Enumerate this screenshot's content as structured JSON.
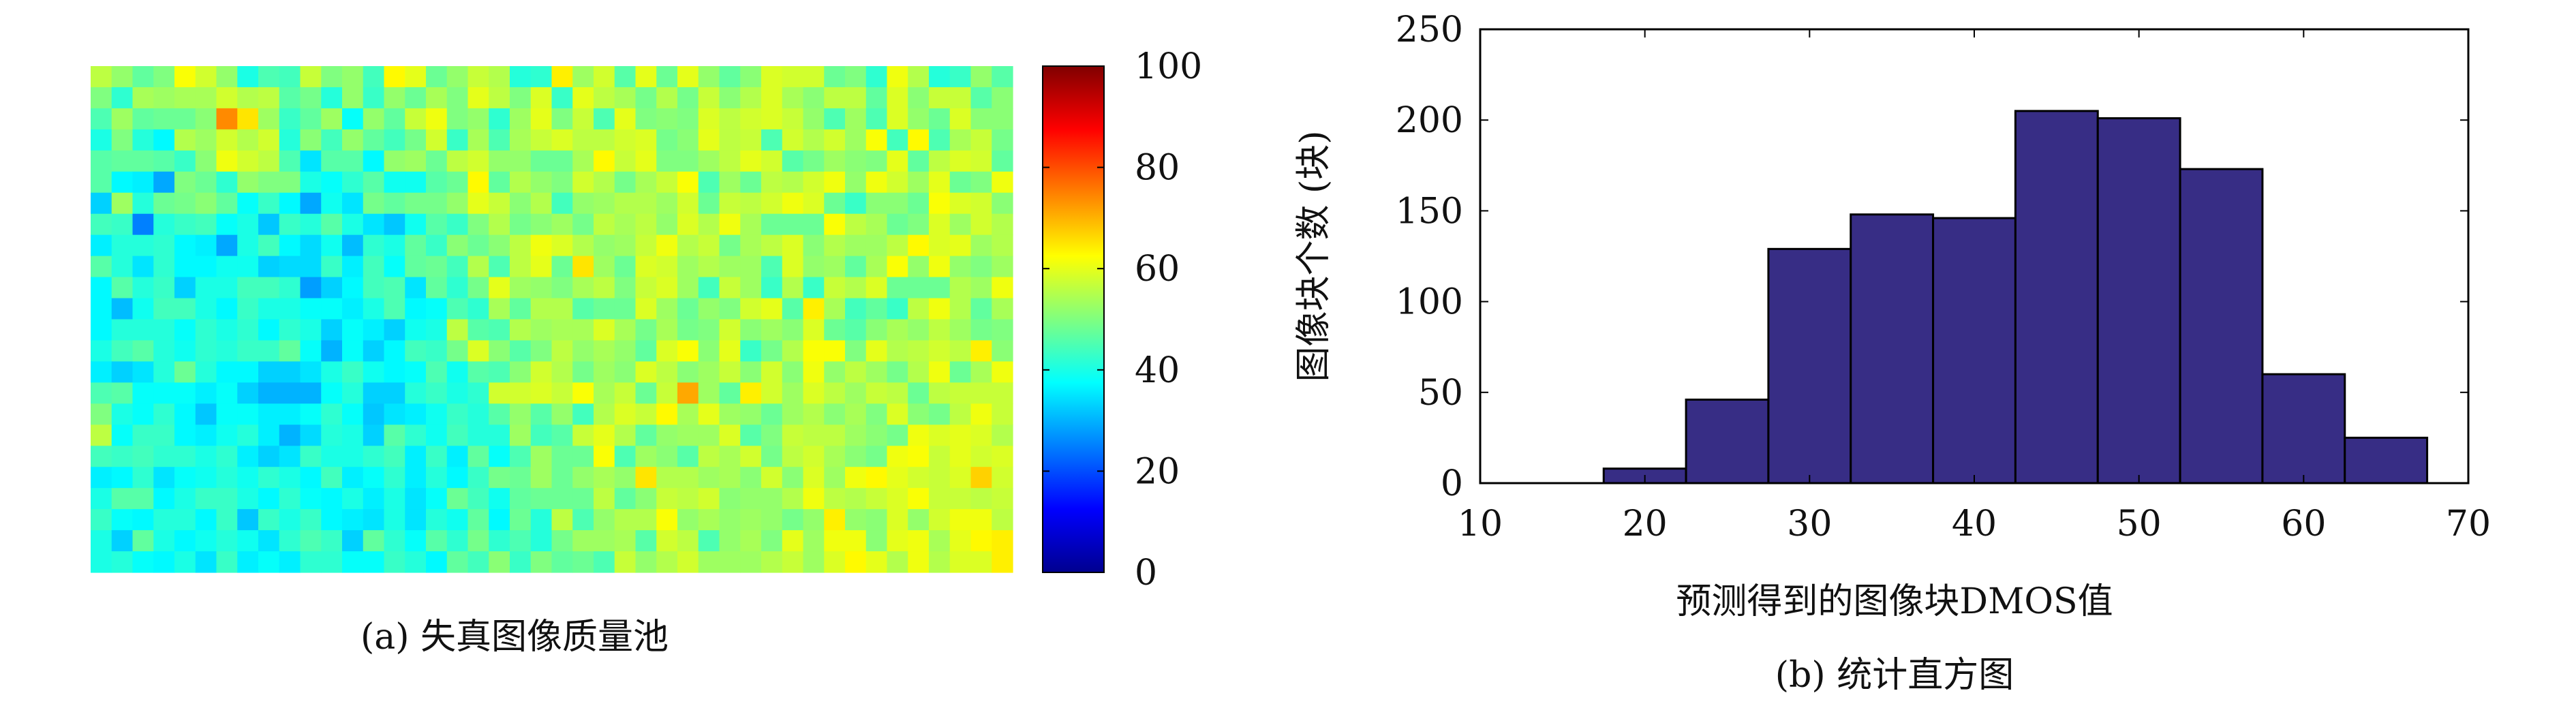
{
  "panel_a": {
    "caption": "(a) 失真图像质量池",
    "colorbar_ticks": [
      "0",
      "20",
      "40",
      "60",
      "80",
      "100"
    ]
  },
  "panel_b": {
    "caption": "(b) 统计直方图"
  },
  "chart_data": [
    {
      "type": "heatmap",
      "rows": 24,
      "cols": 44,
      "colormap": "jet",
      "zlim": [
        0,
        100
      ],
      "colorbar_ticks": [
        0,
        20,
        40,
        60,
        80,
        100
      ],
      "values": [
        [
          56,
          52,
          47,
          50,
          62,
          58,
          52,
          40,
          45,
          44,
          57,
          50,
          52,
          44,
          63,
          60,
          48,
          52,
          57,
          55,
          41,
          42,
          64,
          53,
          58,
          46,
          60,
          48,
          60,
          52,
          47,
          51,
          59,
          58,
          58,
          48,
          50,
          42,
          61,
          55,
          41,
          43,
          52,
          46
        ],
        [
          50,
          42,
          54,
          53,
          54,
          54,
          58,
          55,
          56,
          46,
          49,
          41,
          52,
          43,
          52,
          48,
          54,
          50,
          60,
          56,
          50,
          59,
          43,
          60,
          56,
          54,
          49,
          55,
          49,
          57,
          51,
          55,
          59,
          54,
          51,
          56,
          56,
          47,
          59,
          51,
          57,
          57,
          46,
          51
        ],
        [
          45,
          53,
          47,
          48,
          48,
          51,
          74,
          65,
          53,
          43,
          47,
          53,
          38,
          52,
          47,
          57,
          61,
          50,
          52,
          42,
          53,
          60,
          50,
          57,
          45,
          60,
          50,
          51,
          50,
          59,
          56,
          58,
          59,
          57,
          52,
          45,
          53,
          45,
          59,
          52,
          48,
          59,
          51,
          51
        ],
        [
          40,
          50,
          41,
          37,
          55,
          53,
          58,
          55,
          58,
          41,
          51,
          44,
          52,
          47,
          44,
          49,
          58,
          43,
          54,
          45,
          54,
          57,
          59,
          56,
          56,
          58,
          59,
          49,
          51,
          60,
          56,
          57,
          45,
          58,
          55,
          58,
          53,
          62,
          44,
          63,
          45,
          54,
          57,
          49
        ],
        [
          46,
          47,
          47,
          46,
          43,
          51,
          61,
          58,
          56,
          45,
          35,
          46,
          46,
          37,
          52,
          53,
          48,
          56,
          58,
          52,
          52,
          48,
          48,
          54,
          63,
          57,
          60,
          50,
          50,
          53,
          56,
          60,
          58,
          46,
          49,
          53,
          51,
          50,
          60,
          47,
          56,
          59,
          58,
          47
        ],
        [
          46,
          37,
          36,
          29,
          50,
          48,
          42,
          52,
          50,
          50,
          40,
          38,
          42,
          46,
          39,
          39,
          46,
          48,
          63,
          47,
          55,
          52,
          50,
          58,
          55,
          49,
          54,
          57,
          62,
          45,
          53,
          48,
          56,
          55,
          58,
          61,
          52,
          61,
          58,
          53,
          60,
          48,
          50,
          61
        ],
        [
          33,
          53,
          41,
          48,
          49,
          51,
          47,
          38,
          43,
          37,
          29,
          39,
          35,
          49,
          47,
          49,
          49,
          52,
          60,
          57,
          51,
          55,
          44,
          52,
          53,
          55,
          55,
          53,
          58,
          48,
          57,
          56,
          58,
          61,
          59,
          48,
          43,
          51,
          51,
          48,
          62,
          59,
          58,
          51
        ],
        [
          44,
          43,
          25,
          41,
          43,
          44,
          38,
          40,
          32,
          43,
          41,
          46,
          40,
          35,
          32,
          39,
          46,
          43,
          50,
          55,
          49,
          51,
          53,
          49,
          56,
          54,
          56,
          52,
          59,
          55,
          61,
          54,
          48,
          48,
          48,
          62,
          56,
          54,
          48,
          50,
          59,
          53,
          58,
          55
        ],
        [
          36,
          41,
          41,
          42,
          37,
          36,
          29,
          40,
          44,
          37,
          34,
          39,
          31,
          42,
          40,
          47,
          43,
          51,
          48,
          51,
          56,
          61,
          59,
          55,
          52,
          53,
          57,
          61,
          55,
          57,
          49,
          54,
          56,
          59,
          51,
          55,
          53,
          53,
          56,
          63,
          59,
          60,
          53,
          55
        ],
        [
          46,
          41,
          35,
          42,
          37,
          37,
          39,
          39,
          33,
          34,
          34,
          43,
          36,
          44,
          38,
          47,
          48,
          44,
          55,
          45,
          56,
          60,
          48,
          65,
          53,
          48,
          59,
          58,
          53,
          55,
          53,
          53,
          45,
          59,
          52,
          53,
          47,
          54,
          62,
          52,
          61,
          52,
          50,
          53
        ],
        [
          37,
          46,
          41,
          43,
          33,
          40,
          40,
          44,
          44,
          42,
          28,
          33,
          37,
          44,
          45,
          35,
          47,
          42,
          49,
          60,
          53,
          52,
          50,
          54,
          56,
          50,
          57,
          59,
          53,
          44,
          57,
          53,
          43,
          55,
          43,
          57,
          55,
          59,
          48,
          48,
          48,
          55,
          53,
          61
        ],
        [
          37,
          31,
          39,
          44,
          44,
          40,
          37,
          43,
          40,
          40,
          38,
          38,
          36,
          40,
          45,
          37,
          38,
          45,
          42,
          54,
          47,
          55,
          55,
          46,
          48,
          48,
          59,
          53,
          48,
          52,
          50,
          58,
          60,
          46,
          64,
          54,
          44,
          47,
          43,
          56,
          61,
          55,
          47,
          54
        ],
        [
          37,
          41,
          41,
          41,
          38,
          42,
          40,
          42,
          37,
          42,
          40,
          33,
          38,
          36,
          33,
          39,
          40,
          56,
          46,
          45,
          55,
          53,
          54,
          54,
          59,
          54,
          49,
          54,
          49,
          50,
          58,
          51,
          53,
          51,
          59,
          48,
          46,
          51,
          54,
          52,
          56,
          53,
          49,
          50
        ],
        [
          40,
          44,
          46,
          41,
          39,
          42,
          41,
          43,
          43,
          47,
          38,
          30,
          38,
          33,
          37,
          44,
          43,
          49,
          59,
          51,
          46,
          50,
          56,
          52,
          54,
          52,
          47,
          59,
          62,
          51,
          60,
          43,
          49,
          55,
          62,
          62,
          50,
          60,
          55,
          56,
          58,
          56,
          64,
          51
        ],
        [
          36,
          33,
          35,
          41,
          48,
          41,
          37,
          37,
          33,
          33,
          35,
          40,
          43,
          39,
          37,
          38,
          45,
          39,
          46,
          45,
          51,
          58,
          55,
          49,
          53,
          51,
          59,
          56,
          51,
          53,
          57,
          51,
          58,
          51,
          61,
          52,
          56,
          53,
          49,
          55,
          61,
          48,
          54,
          61
        ],
        [
          45,
          46,
          38,
          38,
          38,
          36,
          38,
          33,
          30,
          30,
          30,
          38,
          41,
          33,
          33,
          41,
          43,
          40,
          42,
          58,
          58,
          59,
          57,
          62,
          54,
          57,
          48,
          57,
          71,
          53,
          47,
          64,
          58,
          53,
          59,
          56,
          53,
          57,
          56,
          48,
          56,
          57,
          57,
          57
        ],
        [
          50,
          40,
          38,
          42,
          37,
          32,
          38,
          38,
          36,
          36,
          38,
          42,
          38,
          32,
          35,
          36,
          39,
          43,
          41,
          46,
          52,
          46,
          52,
          44,
          55,
          59,
          57,
          63,
          54,
          60,
          53,
          52,
          48,
          53,
          55,
          51,
          54,
          50,
          59,
          51,
          49,
          56,
          61,
          57
        ],
        [
          56,
          38,
          43,
          43,
          37,
          36,
          39,
          41,
          36,
          30,
          34,
          41,
          40,
          33,
          46,
          42,
          39,
          44,
          41,
          41,
          53,
          44,
          46,
          57,
          60,
          55,
          47,
          52,
          53,
          53,
          59,
          46,
          50,
          57,
          56,
          56,
          53,
          51,
          49,
          61,
          59,
          60,
          59,
          55
        ],
        [
          44,
          43,
          44,
          42,
          42,
          40,
          42,
          36,
          33,
          35,
          43,
          40,
          40,
          42,
          44,
          36,
          43,
          36,
          47,
          38,
          45,
          53,
          48,
          48,
          62,
          45,
          53,
          51,
          46,
          56,
          54,
          58,
          49,
          56,
          58,
          54,
          51,
          49,
          61,
          62,
          57,
          60,
          58,
          59
        ],
        [
          36,
          37,
          42,
          35,
          38,
          39,
          41,
          39,
          42,
          40,
          37,
          44,
          36,
          38,
          42,
          36,
          41,
          37,
          43,
          49,
          48,
          53,
          48,
          52,
          54,
          52,
          65,
          55,
          55,
          53,
          54,
          51,
          58,
          51,
          59,
          53,
          61,
          63,
          60,
          58,
          57,
          59,
          67,
          58
        ],
        [
          40,
          46,
          46,
          37,
          40,
          43,
          43,
          40,
          37,
          42,
          38,
          37,
          40,
          36,
          40,
          35,
          38,
          48,
          44,
          39,
          47,
          48,
          48,
          48,
          56,
          47,
          51,
          57,
          56,
          58,
          51,
          52,
          52,
          55,
          61,
          56,
          55,
          57,
          59,
          62,
          57,
          57,
          56,
          57
        ],
        [
          43,
          38,
          37,
          41,
          41,
          37,
          43,
          32,
          43,
          40,
          43,
          37,
          36,
          35,
          40,
          35,
          41,
          39,
          47,
          37,
          48,
          41,
          56,
          45,
          52,
          55,
          55,
          62,
          52,
          54,
          52,
          53,
          52,
          49,
          52,
          64,
          52,
          51,
          59,
          52,
          58,
          61,
          61,
          56
        ],
        [
          40,
          33,
          47,
          40,
          37,
          39,
          41,
          39,
          35,
          42,
          45,
          43,
          33,
          47,
          42,
          38,
          46,
          42,
          49,
          42,
          45,
          41,
          49,
          53,
          53,
          54,
          46,
          58,
          56,
          45,
          52,
          54,
          50,
          60,
          53,
          61,
          61,
          51,
          60,
          61,
          54,
          60,
          63,
          64
        ],
        [
          40,
          41,
          38,
          37,
          40,
          35,
          43,
          36,
          38,
          36,
          42,
          42,
          38,
          38,
          43,
          41,
          37,
          47,
          44,
          51,
          43,
          50,
          47,
          48,
          45,
          57,
          52,
          55,
          58,
          53,
          53,
          53,
          55,
          57,
          53,
          59,
          63,
          60,
          55,
          61,
          55,
          59,
          59,
          64
        ]
      ]
    },
    {
      "type": "bar",
      "subtype": "histogram",
      "xlabel": "预测得到的图像块DMOS值",
      "ylabel": "图像块个数 (块)",
      "xlim": [
        10,
        70
      ],
      "ylim": [
        0,
        250
      ],
      "xticks": [
        10,
        20,
        30,
        40,
        50,
        60,
        70
      ],
      "yticks": [
        0,
        50,
        100,
        150,
        200,
        250
      ],
      "bin_width": 5,
      "bin_centers": [
        15,
        20,
        25,
        30,
        35,
        40,
        45,
        50,
        55,
        60,
        65
      ],
      "values": [
        0,
        8,
        46,
        129,
        148,
        146,
        205,
        201,
        173,
        60,
        25
      ],
      "bar_color": "#372d85",
      "grid": false,
      "legend": "none"
    }
  ]
}
